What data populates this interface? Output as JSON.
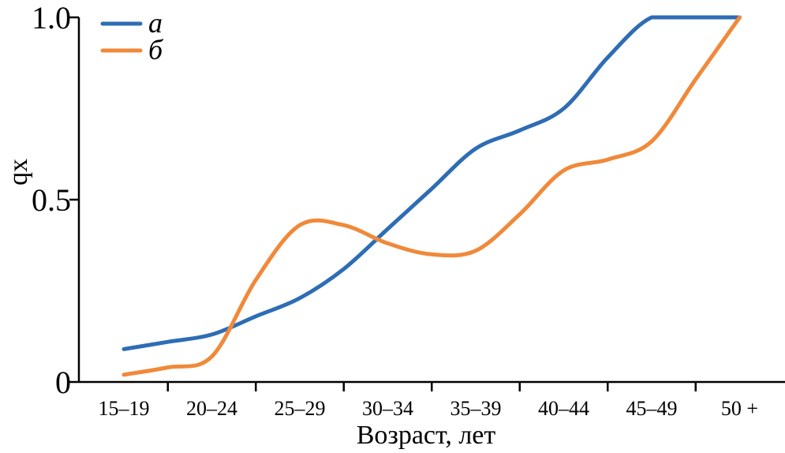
{
  "chart_data": {
    "type": "line",
    "categories": [
      "15–19",
      "20–24",
      "25–29",
      "30–34",
      "35–39",
      "40–44",
      "45–49",
      "50 +"
    ],
    "xlabel": "Возраст, лет",
    "ylabel": "qx",
    "ylim": [
      0,
      1
    ],
    "yticks": [
      0,
      0.5,
      1
    ],
    "ytick_labels": [
      "0",
      "0.5",
      "1.0"
    ],
    "grid": false,
    "legend_position": "top-left",
    "series": [
      {
        "name": "а",
        "color": "#2e6db4",
        "x": [
          0,
          0.5,
          1,
          1.5,
          2,
          2.5,
          3,
          3.5,
          4,
          4.5,
          5,
          5.5,
          6,
          6.5,
          7
        ],
        "values": [
          0.09,
          0.11,
          0.13,
          0.18,
          0.23,
          0.31,
          0.42,
          0.53,
          0.64,
          0.69,
          0.75,
          0.89,
          1.0,
          1.0,
          1.0
        ]
      },
      {
        "name": "б",
        "color": "#f0893a",
        "x": [
          0,
          0.5,
          1,
          1.5,
          2,
          2.5,
          3,
          3.5,
          4,
          4.5,
          5,
          5.5,
          6,
          6.5,
          7
        ],
        "values": [
          0.02,
          0.04,
          0.07,
          0.28,
          0.43,
          0.43,
          0.38,
          0.35,
          0.36,
          0.46,
          0.58,
          0.61,
          0.66,
          0.83,
          1.0
        ]
      }
    ]
  }
}
